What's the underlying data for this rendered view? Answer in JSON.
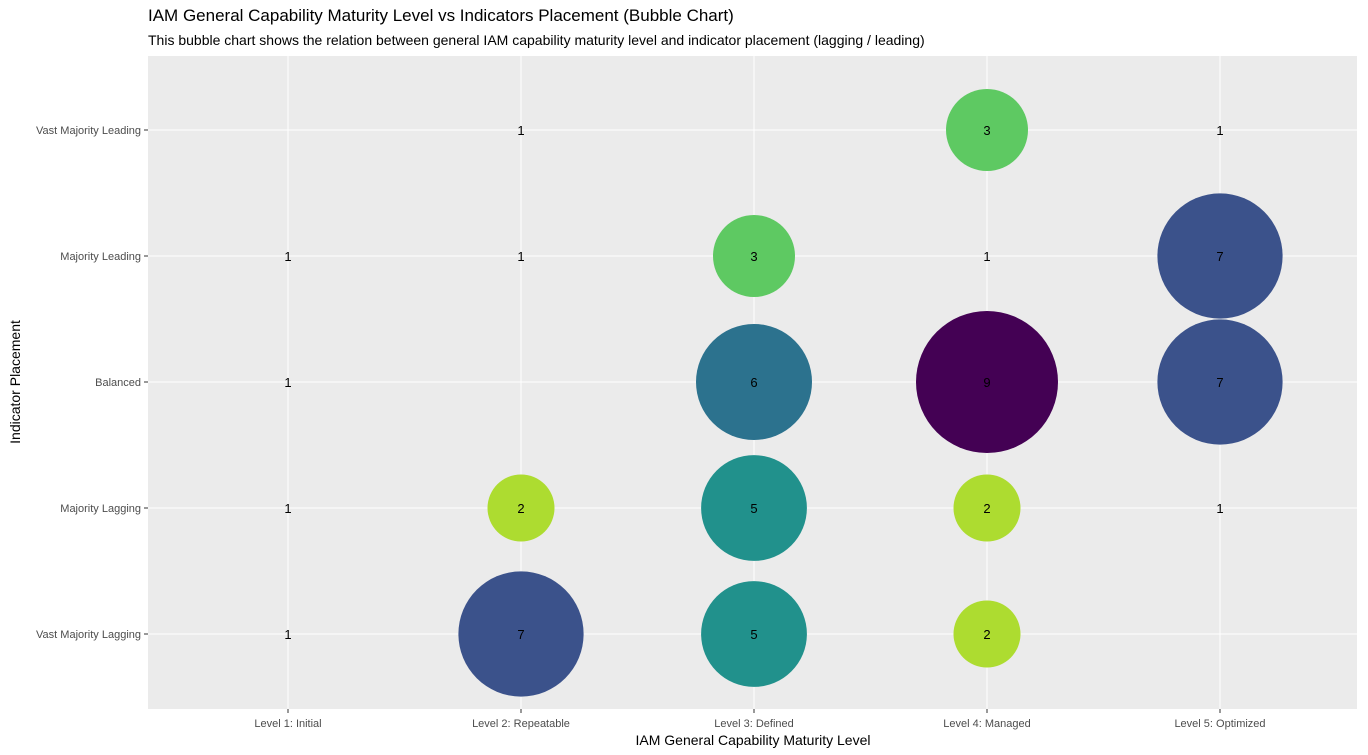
{
  "chart_data": {
    "type": "scatter",
    "title": "IAM General Capability Maturity Level vs Indicators Placement (Bubble Chart)",
    "subtitle": "This bubble chart shows the relation between general IAM capability maturity level and indicator placement (lagging / leading)",
    "xlabel": "IAM General Capability Maturity Level",
    "ylabel": "Indicator Placement",
    "x_categories": [
      "Level 1: Initial",
      "Level 2: Repeatable",
      "Level 3: Defined",
      "Level 4: Managed",
      "Level 5: Optimized"
    ],
    "y_categories": [
      "Vast Majority Lagging",
      "Majority Lagging",
      "Balanced",
      "Majority Leading",
      "Vast Majority Leading"
    ],
    "grid": true,
    "legend": "none",
    "colors": {
      "panel": "#ebebeb",
      "grid": "#ffffff",
      "count_2": "#addc30",
      "count_3": "#5ec962",
      "count_5": "#21918c",
      "count_6": "#2c728e",
      "count_7": "#3b528b",
      "count_9": "#440154"
    },
    "points": [
      {
        "x": "Level 1: Initial",
        "y": "Vast Majority Lagging",
        "count": 1
      },
      {
        "x": "Level 1: Initial",
        "y": "Majority Lagging",
        "count": 1
      },
      {
        "x": "Level 1: Initial",
        "y": "Balanced",
        "count": 1
      },
      {
        "x": "Level 1: Initial",
        "y": "Majority Leading",
        "count": 1
      },
      {
        "x": "Level 2: Repeatable",
        "y": "Vast Majority Lagging",
        "count": 7
      },
      {
        "x": "Level 2: Repeatable",
        "y": "Majority Lagging",
        "count": 2
      },
      {
        "x": "Level 2: Repeatable",
        "y": "Majority Leading",
        "count": 1
      },
      {
        "x": "Level 2: Repeatable",
        "y": "Vast Majority Leading",
        "count": 1
      },
      {
        "x": "Level 3: Defined",
        "y": "Vast Majority Lagging",
        "count": 5
      },
      {
        "x": "Level 3: Defined",
        "y": "Majority Lagging",
        "count": 5
      },
      {
        "x": "Level 3: Defined",
        "y": "Balanced",
        "count": 6
      },
      {
        "x": "Level 3: Defined",
        "y": "Majority Leading",
        "count": 3
      },
      {
        "x": "Level 4: Managed",
        "y": "Vast Majority Lagging",
        "count": 2
      },
      {
        "x": "Level 4: Managed",
        "y": "Majority Lagging",
        "count": 2
      },
      {
        "x": "Level 4: Managed",
        "y": "Balanced",
        "count": 9
      },
      {
        "x": "Level 4: Managed",
        "y": "Majority Leading",
        "count": 1
      },
      {
        "x": "Level 4: Managed",
        "y": "Vast Majority Leading",
        "count": 3
      },
      {
        "x": "Level 5: Optimized",
        "y": "Majority Lagging",
        "count": 1
      },
      {
        "x": "Level 5: Optimized",
        "y": "Balanced",
        "count": 7
      },
      {
        "x": "Level 5: Optimized",
        "y": "Majority Leading",
        "count": 7
      },
      {
        "x": "Level 5: Optimized",
        "y": "Vast Majority Leading",
        "count": 1
      }
    ]
  }
}
